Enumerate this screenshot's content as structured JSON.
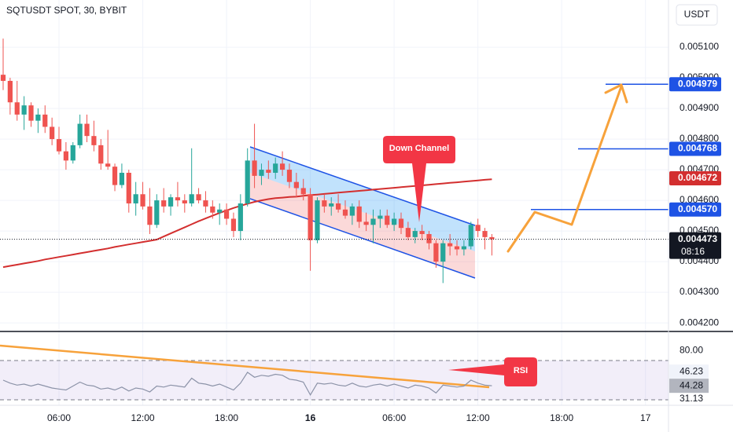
{
  "chart_data": {
    "type": "candlestick",
    "title": "SQTUSDT SPOT, 30, BYBIT",
    "currency": "USDT",
    "up_color": "#26a69a",
    "down_color": "#ef5350",
    "xlim": [
      -0.45,
      95.3
    ],
    "xticks": [
      {
        "value": 8,
        "label": "06:00"
      },
      {
        "value": 20,
        "label": "12:00"
      },
      {
        "value": 32,
        "label": "18:00"
      },
      {
        "value": 44,
        "label": "16"
      },
      {
        "value": 56,
        "label": "06:00"
      },
      {
        "value": 68,
        "label": "12:00"
      },
      {
        "value": 80,
        "label": "18:00"
      },
      {
        "value": 92,
        "label": "17"
      }
    ],
    "ylim": [
      0.004172,
      0.005254
    ],
    "yticks": [
      {
        "value": 0.0042,
        "label": "0.004200"
      },
      {
        "value": 0.0043,
        "label": "0.004300"
      },
      {
        "value": 0.0044,
        "label": "0.004400"
      },
      {
        "value": 0.0045,
        "label": "0.004500"
      },
      {
        "value": 0.0046,
        "label": "0.004600"
      },
      {
        "value": 0.0047,
        "label": "0.004700"
      },
      {
        "value": 0.0048,
        "label": "0.004800"
      },
      {
        "value": 0.0049,
        "label": "0.004900"
      },
      {
        "value": 0.005,
        "label": "0.005000"
      },
      {
        "value": 0.0051,
        "label": "0.005100"
      }
    ],
    "grid": true,
    "ohlc": [
      [
        0.00501,
        0.005128,
        0.00496,
        0.00499
      ],
      [
        0.00499,
        0.005,
        0.00488,
        0.00492
      ],
      [
        0.00492,
        0.00499,
        0.00486,
        0.00488
      ],
      [
        0.00488,
        0.00494,
        0.00483,
        0.00491
      ],
      [
        0.00491,
        0.00492,
        0.00484,
        0.00486
      ],
      [
        0.00486,
        0.0049,
        0.00482,
        0.00488
      ],
      [
        0.00488,
        0.00491,
        0.00482,
        0.00484
      ],
      [
        0.00484,
        0.00487,
        0.00478,
        0.0048
      ],
      [
        0.0048,
        0.00484,
        0.00475,
        0.00476
      ],
      [
        0.00476,
        0.00479,
        0.0047,
        0.00473
      ],
      [
        0.00473,
        0.00479,
        0.00472,
        0.00478
      ],
      [
        0.00478,
        0.00488,
        0.00477,
        0.00485
      ],
      [
        0.00485,
        0.00488,
        0.00479,
        0.00481
      ],
      [
        0.00481,
        0.00486,
        0.00476,
        0.00478
      ],
      [
        0.00478,
        0.0048,
        0.0047,
        0.00472
      ],
      [
        0.00472,
        0.00483,
        0.0047,
        0.00471
      ],
      [
        0.00471,
        0.00472,
        0.00463,
        0.00465
      ],
      [
        0.00465,
        0.00472,
        0.00464,
        0.00469
      ],
      [
        0.00469,
        0.0047,
        0.00456,
        0.00459
      ],
      [
        0.00459,
        0.00466,
        0.00455,
        0.00462
      ],
      [
        0.00462,
        0.00466,
        0.00457,
        0.00458
      ],
      [
        0.00458,
        0.00464,
        0.00449,
        0.00452
      ],
      [
        0.00452,
        0.00462,
        0.00451,
        0.0046
      ],
      [
        0.0046,
        0.00464,
        0.00456,
        0.00458
      ],
      [
        0.00458,
        0.00462,
        0.00455,
        0.00461
      ],
      [
        0.00461,
        0.00466,
        0.00458,
        0.0046
      ],
      [
        0.0046,
        0.00462,
        0.00456,
        0.00459
      ],
      [
        0.00459,
        0.00477,
        0.00458,
        0.00462
      ],
      [
        0.00462,
        0.00464,
        0.00459,
        0.0046
      ],
      [
        0.0046,
        0.00463,
        0.00456,
        0.00458
      ],
      [
        0.00458,
        0.0046,
        0.00454,
        0.00456
      ],
      [
        0.00456,
        0.00459,
        0.00452,
        0.00457
      ],
      [
        0.00457,
        0.00459,
        0.00452,
        0.00454
      ],
      [
        0.00454,
        0.00456,
        0.00448,
        0.0045
      ],
      [
        0.0045,
        0.00462,
        0.00447,
        0.00459
      ],
      [
        0.00459,
        0.00477,
        0.00458,
        0.00473
      ],
      [
        0.00473,
        0.00485,
        0.00464,
        0.00468
      ],
      [
        0.00468,
        0.00472,
        0.00465,
        0.0047
      ],
      [
        0.0047,
        0.00473,
        0.00467,
        0.00469
      ],
      [
        0.00469,
        0.00474,
        0.00467,
        0.00472
      ],
      [
        0.00472,
        0.00476,
        0.00468,
        0.0047
      ],
      [
        0.0047,
        0.00472,
        0.00464,
        0.00466
      ],
      [
        0.00466,
        0.00469,
        0.00461,
        0.00464
      ],
      [
        0.00464,
        0.00467,
        0.0046,
        0.00462
      ],
      [
        0.00462,
        0.00464,
        0.00437,
        0.00447
      ],
      [
        0.00447,
        0.00461,
        0.00446,
        0.0046
      ],
      [
        0.0046,
        0.00462,
        0.00456,
        0.00458
      ],
      [
        0.00458,
        0.00461,
        0.00455,
        0.00459
      ],
      [
        0.00459,
        0.00462,
        0.00456,
        0.00457
      ],
      [
        0.00457,
        0.0046,
        0.00454,
        0.00455
      ],
      [
        0.00455,
        0.00459,
        0.00452,
        0.00458
      ],
      [
        0.00458,
        0.0046,
        0.00451,
        0.00453
      ],
      [
        0.00453,
        0.00456,
        0.0045,
        0.00452
      ],
      [
        0.00452,
        0.00457,
        0.00446,
        0.00454
      ],
      [
        0.00454,
        0.00457,
        0.00451,
        0.00455
      ],
      [
        0.00455,
        0.00457,
        0.00451,
        0.00452
      ],
      [
        0.00452,
        0.00456,
        0.0045,
        0.00454
      ],
      [
        0.00454,
        0.00456,
        0.00449,
        0.00451
      ],
      [
        0.00451,
        0.00453,
        0.00447,
        0.00448
      ],
      [
        0.00448,
        0.00451,
        0.00446,
        0.0045
      ],
      [
        0.0045,
        0.00452,
        0.00447,
        0.00449
      ],
      [
        0.00449,
        0.0045,
        0.00444,
        0.00446
      ],
      [
        0.00446,
        0.00447,
        0.00438,
        0.0044
      ],
      [
        0.0044,
        0.00447,
        0.00433,
        0.00446
      ],
      [
        0.00446,
        0.00449,
        0.00442,
        0.00445
      ],
      [
        0.00445,
        0.00447,
        0.00442,
        0.00444
      ],
      [
        0.00444,
        0.00447,
        0.00442,
        0.00445
      ],
      [
        0.00445,
        0.00453,
        0.00444,
        0.00452
      ],
      [
        0.00452,
        0.00454,
        0.00448,
        0.0045
      ],
      [
        0.0045,
        0.00451,
        0.00444,
        0.00448
      ],
      [
        0.00448,
        0.00449,
        0.00442,
        0.004473
      ]
    ],
    "ma": {
      "color": "#d32f2f",
      "values": [
        0.004382,
        0.004386,
        0.00439,
        0.004394,
        0.004398,
        0.004402,
        0.004407,
        0.004411,
        0.004415,
        0.004419,
        0.004423,
        0.004427,
        0.004431,
        0.004435,
        0.004439,
        0.004443,
        0.004448,
        0.004452,
        0.004456,
        0.00446,
        0.004464,
        0.004468,
        0.004472,
        0.004482,
        0.004492,
        0.004502,
        0.004512,
        0.004522,
        0.004532,
        0.004541,
        0.00455,
        0.004559,
        0.004567,
        0.004575,
        0.004582,
        0.004589,
        0.004595,
        0.0046,
        0.004604,
        0.004607,
        0.004609,
        0.004611,
        0.004612,
        0.004615,
        0.004617,
        0.004619,
        0.004621,
        0.004623,
        0.004625,
        0.004627,
        0.004629,
        0.004631,
        0.004633,
        0.004635,
        0.004637,
        0.004639,
        0.004641,
        0.004643,
        0.004645,
        0.004647,
        0.004649,
        0.004651,
        0.004653,
        0.004655,
        0.004657,
        0.004659,
        0.004661,
        0.004663,
        0.004665,
        0.004667,
        0.004669
      ]
    },
    "levels": [
      {
        "value": 0.004979,
        "label": "0.004979",
        "color": "#1e53e5"
      },
      {
        "value": 0.004768,
        "label": "0.004768",
        "color": "#1e53e5"
      },
      {
        "value": 0.004672,
        "label": "0.004672",
        "color": "#d32f2f"
      },
      {
        "value": 0.00457,
        "label": "0.004570",
        "color": "#1e53e5"
      },
      {
        "value": 0.004473,
        "label": "0.004473",
        "color": "#131722"
      }
    ],
    "countdown": "08:16",
    "annotations": [
      "Down Channel",
      "RSI"
    ],
    "rsi": {
      "color": "#8c93a8",
      "ylim": [
        21.2,
        97.2
      ],
      "bands": [
        70,
        30
      ],
      "yticks": [
        {
          "value": 80,
          "label": "80.00"
        },
        {
          "value": 31.13,
          "label": "31.13"
        }
      ],
      "ma_last": {
        "value": 46.23,
        "label": "46.23"
      },
      "last": {
        "value": 44.28,
        "label": "44.28"
      },
      "values": [
        50,
        47,
        45,
        46,
        44,
        46,
        44,
        42,
        41,
        40,
        44,
        48,
        45,
        44,
        41,
        42,
        40,
        43,
        39,
        42,
        41,
        38,
        44,
        43,
        45,
        44,
        43,
        52,
        47,
        46,
        44,
        46,
        43,
        40,
        47,
        58,
        53,
        55,
        54,
        56,
        55,
        51,
        50,
        48,
        35,
        47,
        46,
        47,
        45,
        44,
        47,
        44,
        43,
        45,
        46,
        44,
        46,
        44,
        42,
        45,
        44,
        42,
        37,
        45,
        44,
        43,
        44,
        50,
        47,
        45,
        44.28
      ]
    }
  }
}
